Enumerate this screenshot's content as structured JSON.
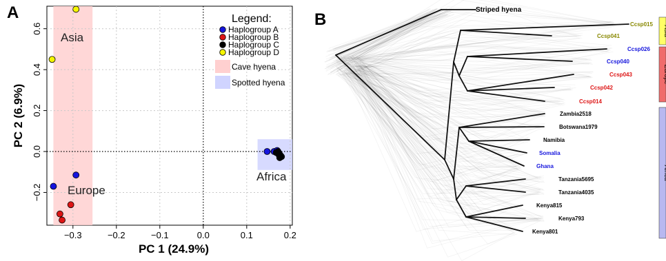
{
  "panel_a": {
    "letter": "A",
    "xlabel": "PC 1 (24.9%)",
    "ylabel": "PC 2 (6.9%)",
    "regions": {
      "asia": "Asia",
      "europe": "Europe",
      "africa": "Africa"
    },
    "legend_title": "Legend:",
    "legend_items": [
      {
        "label": "Haplogroup A",
        "kind": "dot",
        "color": "#1515dd"
      },
      {
        "label": "Haplogroup B",
        "kind": "dot",
        "color": "#dd1515"
      },
      {
        "label": "Haplogroup C",
        "kind": "dot",
        "color": "#000000"
      },
      {
        "label": "Haplogroup D",
        "kind": "dot",
        "color": "#f5f500"
      },
      {
        "label": "Cave hyena",
        "kind": "box",
        "color": "#ffd0d0"
      },
      {
        "label": "Spotted hyena",
        "kind": "box",
        "color": "#d0d4ff"
      }
    ]
  },
  "panel_b": {
    "letter": "B",
    "root_label": "Striped hyena",
    "leaves": [
      {
        "label": "Ccsp015",
        "color": "#888800"
      },
      {
        "label": "Ccsp041",
        "color": "#888800"
      },
      {
        "label": "Ccsp026",
        "color": "#1515dd"
      },
      {
        "label": "Ccsp040",
        "color": "#1515dd"
      },
      {
        "label": "Ccsp043",
        "color": "#dd1515"
      },
      {
        "label": "Ccsp042",
        "color": "#dd1515"
      },
      {
        "label": "Ccsp014",
        "color": "#dd1515"
      },
      {
        "label": "Zambia2518",
        "color": "#000000"
      },
      {
        "label": "Botswana1979",
        "color": "#000000"
      },
      {
        "label": "Namibia",
        "color": "#000000"
      },
      {
        "label": "Somalia",
        "color": "#1515dd"
      },
      {
        "label": "Ghana",
        "color": "#1515dd"
      },
      {
        "label": "Tanzania5695",
        "color": "#000000"
      },
      {
        "label": "Tanzania4035",
        "color": "#000000"
      },
      {
        "label": "Kenya815",
        "color": "#000000"
      },
      {
        "label": "Kenya793",
        "color": "#000000"
      },
      {
        "label": "Kenya801",
        "color": "#000000"
      }
    ],
    "groups": [
      {
        "label": "Asia",
        "color": "#ffff66"
      },
      {
        "label": "Europe",
        "color": "#f06b6b"
      },
      {
        "label": "Africa",
        "color": "#b8b8f0"
      }
    ]
  },
  "chart_data": [
    {
      "type": "scatter",
      "title": "",
      "xlabel": "PC 1 (24.9%)",
      "ylabel": "PC 2 (6.9%)",
      "xlim": [
        -0.36,
        0.205
      ],
      "ylim": [
        -0.36,
        0.71
      ],
      "xticks": [
        -0.3,
        -0.2,
        -0.1,
        0.0,
        0.1,
        0.2
      ],
      "yticks": [
        -0.2,
        0.0,
        0.2,
        0.4,
        0.6
      ],
      "xtick_labels": [
        "−0.3",
        "−0.2",
        "−0.1",
        "0.0",
        "0.1",
        "0.2"
      ],
      "ytick_labels": [
        "−0.2",
        "0.0",
        "0.2",
        "0.4",
        "0.6"
      ],
      "grid": "dotted",
      "reference_lines": {
        "x": 0,
        "y": 0
      },
      "legend_position": "top-right",
      "series": [
        {
          "name": "Haplogroup A",
          "color": "#1515dd",
          "points": [
            [
              -0.293,
              -0.115
            ],
            [
              -0.345,
              -0.17
            ],
            [
              0.147,
              0.0
            ],
            [
              0.163,
              0.0
            ],
            [
              0.17,
              0.005
            ]
          ]
        },
        {
          "name": "Haplogroup B",
          "color": "#dd1515",
          "points": [
            [
              -0.305,
              -0.26
            ],
            [
              -0.33,
              -0.305
            ],
            [
              -0.325,
              -0.335
            ]
          ]
        },
        {
          "name": "Haplogroup C",
          "color": "#000000",
          "points": [
            [
              0.168,
              -0.005
            ],
            [
              0.172,
              0.0
            ],
            [
              0.175,
              -0.01
            ],
            [
              0.178,
              -0.02
            ],
            [
              0.176,
              -0.03
            ],
            [
              0.18,
              -0.025
            ],
            [
              0.174,
              -0.015
            ],
            [
              0.171,
              -0.008
            ]
          ]
        },
        {
          "name": "Haplogroup D",
          "color": "#f5f500",
          "points": [
            [
              -0.293,
              0.695
            ],
            [
              -0.348,
              0.45
            ]
          ]
        }
      ],
      "shaded_regions": [
        {
          "label": "Cave hyena",
          "color": "#ffd0d0",
          "x": [
            -0.345,
            -0.255
          ],
          "y": [
            -0.36,
            0.71
          ]
        },
        {
          "label": "Spotted hyena",
          "color": "#d0d4ff",
          "x": [
            0.125,
            0.205
          ],
          "y": [
            -0.09,
            0.06
          ]
        }
      ]
    }
  ]
}
